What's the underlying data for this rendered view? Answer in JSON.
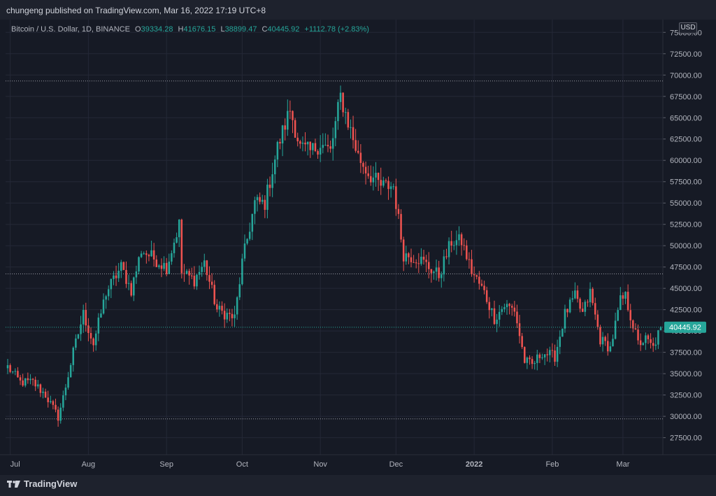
{
  "header": {
    "publisher_line": "chungeng published on TradingView.com, Mar 16, 2022 17:19 UTC+8"
  },
  "legend": {
    "symbol": "Bitcoin / U.S. Dollar, 1D, BINANCE",
    "o_label": "O",
    "o_value": "39334.28",
    "h_label": "H",
    "h_value": "41676.15",
    "l_label": "L",
    "l_value": "38899.47",
    "c_label": "C",
    "c_value": "40445.92",
    "change": "+1112.78 (+2.83%)"
  },
  "currency": "USD",
  "brand": {
    "name": "TradingView",
    "icon": "tradingview-logo-icon"
  },
  "colors": {
    "up": "#26a69a",
    "down": "#ef5350",
    "background": "#161a25",
    "grid": "#242837"
  },
  "chart_data": {
    "type": "candlestick",
    "y_ticks": [
      "27500.00",
      "30000.00",
      "32500.00",
      "35000.00",
      "37500.00",
      "40000.00",
      "42500.00",
      "45000.00",
      "47500.00",
      "50000.00",
      "52500.00",
      "55000.00",
      "57500.00",
      "60000.00",
      "62500.00",
      "65000.00",
      "67500.00",
      "70000.00",
      "72500.00",
      "75000.00"
    ],
    "ylim": [
      25500,
      76500
    ],
    "x_ticks": [
      {
        "label": "Jul",
        "date": "2021-07-01"
      },
      {
        "label": "Aug",
        "date": "2021-08-01"
      },
      {
        "label": "Sep",
        "date": "2021-09-01"
      },
      {
        "label": "Oct",
        "date": "2021-10-01"
      },
      {
        "label": "Nov",
        "date": "2021-11-01"
      },
      {
        "label": "Dec",
        "date": "2021-12-01"
      },
      {
        "label": "2022",
        "date": "2022-01-01"
      },
      {
        "label": "Feb",
        "date": "2022-02-01"
      },
      {
        "label": "Mar",
        "date": "2022-03-01"
      }
    ],
    "x_range": [
      "2021-06-30",
      "2022-03-16"
    ],
    "horizontal_lines": [
      69300,
      46700,
      29700
    ],
    "last_price": {
      "value": 40445.92,
      "label": "40445.92"
    },
    "anchors": [
      [
        "2021-06-30",
        35800
      ],
      [
        "2021-07-05",
        34000
      ],
      [
        "2021-07-10",
        34000
      ],
      [
        "2021-07-15",
        32500
      ],
      [
        "2021-07-20",
        29900
      ],
      [
        "2021-07-22",
        32200
      ],
      [
        "2021-07-26",
        37500
      ],
      [
        "2021-07-30",
        42000
      ],
      [
        "2021-08-03",
        38500
      ],
      [
        "2021-08-08",
        44500
      ],
      [
        "2021-08-14",
        47500
      ],
      [
        "2021-08-18",
        44800
      ],
      [
        "2021-08-22",
        49500
      ],
      [
        "2021-08-27",
        48500
      ],
      [
        "2021-09-01",
        47500
      ],
      [
        "2021-09-06",
        52500
      ],
      [
        "2021-09-07",
        46800
      ],
      [
        "2021-09-12",
        46000
      ],
      [
        "2021-09-16",
        48000
      ],
      [
        "2021-09-21",
        42500
      ],
      [
        "2021-09-28",
        41500
      ],
      [
        "2021-10-01",
        48000
      ],
      [
        "2021-10-06",
        55000
      ],
      [
        "2021-10-10",
        55000
      ],
      [
        "2021-10-15",
        61500
      ],
      [
        "2021-10-20",
        66000
      ],
      [
        "2021-10-24",
        61500
      ],
      [
        "2021-10-28",
        61000
      ],
      [
        "2021-11-01",
        62000
      ],
      [
        "2021-11-05",
        61000
      ],
      [
        "2021-11-09",
        67500
      ],
      [
        "2021-11-12",
        64500
      ],
      [
        "2021-11-16",
        60500
      ],
      [
        "2021-11-20",
        58500
      ],
      [
        "2021-11-25",
        57000
      ],
      [
        "2021-11-30",
        57000
      ],
      [
        "2021-12-04",
        49000
      ],
      [
        "2021-12-10",
        48500
      ],
      [
        "2021-12-14",
        47500
      ],
      [
        "2021-12-18",
        46500
      ],
      [
        "2021-12-23",
        50500
      ],
      [
        "2021-12-27",
        50500
      ],
      [
        "2021-12-31",
        47000
      ],
      [
        "2022-01-05",
        44500
      ],
      [
        "2022-01-09",
        41500
      ],
      [
        "2022-01-13",
        43000
      ],
      [
        "2022-01-17",
        42500
      ],
      [
        "2022-01-21",
        36500
      ],
      [
        "2022-01-24",
        36000
      ],
      [
        "2022-01-28",
        37500
      ],
      [
        "2022-02-02",
        37000
      ],
      [
        "2022-02-06",
        42000
      ],
      [
        "2022-02-10",
        44000
      ],
      [
        "2022-02-13",
        42000
      ],
      [
        "2022-02-16",
        44500
      ],
      [
        "2022-02-20",
        39000
      ],
      [
        "2022-02-24",
        38000
      ],
      [
        "2022-02-28",
        43500
      ],
      [
        "2022-03-02",
        44000
      ],
      [
        "2022-03-07",
        38500
      ],
      [
        "2022-03-10",
        39000
      ],
      [
        "2022-03-13",
        38000
      ],
      [
        "2022-03-16",
        40445.92
      ]
    ]
  }
}
